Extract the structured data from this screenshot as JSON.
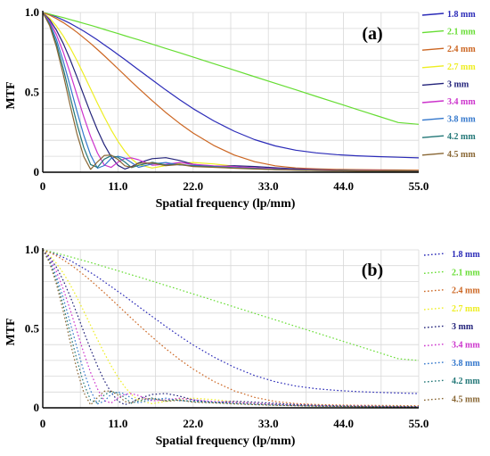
{
  "chart_data": [
    {
      "type": "line",
      "panel_label": "(a)",
      "line_style": "solid",
      "xlabel": "Spatial frequency (lp/mm)",
      "ylabel": "MTF",
      "xlim": [
        0,
        55
      ],
      "ylim": [
        0,
        1
      ],
      "x_ticks": [
        "0",
        "11.0",
        "22.0",
        "33.0",
        "44.0",
        "55.0"
      ],
      "y_ticks": [
        "0",
        "0.5",
        "1.0"
      ],
      "grid": true,
      "legend_position": "right",
      "x": [
        0,
        1,
        2,
        3,
        4,
        5,
        6,
        7,
        8,
        9,
        10,
        11,
        12,
        13,
        14,
        16,
        18,
        20,
        22,
        25,
        28,
        31,
        34,
        37,
        40,
        43,
        46,
        49,
        52,
        55
      ],
      "series": [
        {
          "name": "1.8 mm",
          "color": "#2b2bb8",
          "values": [
            1.0,
            0.988,
            0.972,
            0.953,
            0.932,
            0.908,
            0.883,
            0.856,
            0.828,
            0.798,
            0.768,
            0.737,
            0.706,
            0.674,
            0.642,
            0.578,
            0.515,
            0.455,
            0.398,
            0.322,
            0.257,
            0.204,
            0.165,
            0.138,
            0.121,
            0.11,
            0.103,
            0.098,
            0.094,
            0.09
          ]
        },
        {
          "name": "2.1 mm",
          "color": "#66dd33",
          "values": [
            1.0,
            0.99,
            0.979,
            0.968,
            0.956,
            0.944,
            0.932,
            0.92,
            0.907,
            0.894,
            0.881,
            0.868,
            0.855,
            0.842,
            0.829,
            0.802,
            0.775,
            0.748,
            0.721,
            0.68,
            0.639,
            0.598,
            0.557,
            0.516,
            0.475,
            0.434,
            0.393,
            0.352,
            0.311,
            0.3
          ]
        },
        {
          "name": "2.4 mm",
          "color": "#cc6622",
          "values": [
            1.0,
            0.983,
            0.962,
            0.937,
            0.908,
            0.876,
            0.842,
            0.806,
            0.768,
            0.729,
            0.689,
            0.648,
            0.607,
            0.566,
            0.526,
            0.448,
            0.374,
            0.306,
            0.245,
            0.168,
            0.108,
            0.066,
            0.04,
            0.027,
            0.021,
            0.018,
            0.016,
            0.015,
            0.014,
            0.013
          ]
        },
        {
          "name": "2.7 mm",
          "color": "#eeee22",
          "values": [
            1.0,
            0.965,
            0.915,
            0.853,
            0.78,
            0.699,
            0.612,
            0.522,
            0.432,
            0.346,
            0.266,
            0.194,
            0.132,
            0.083,
            0.048,
            0.026,
            0.042,
            0.056,
            0.061,
            0.052,
            0.038,
            0.028,
            0.022,
            0.018,
            0.015,
            0.013,
            0.011,
            0.01,
            0.009,
            0.008
          ]
        },
        {
          "name": "3 mm",
          "color": "#22227a",
          "values": [
            1.0,
            0.955,
            0.89,
            0.806,
            0.706,
            0.596,
            0.482,
            0.37,
            0.265,
            0.172,
            0.097,
            0.043,
            0.02,
            0.035,
            0.058,
            0.085,
            0.091,
            0.074,
            0.05,
            0.034,
            0.041,
            0.036,
            0.028,
            0.021,
            0.016,
            0.013,
            0.011,
            0.01,
            0.009,
            0.008
          ]
        },
        {
          "name": "3.4 mm",
          "color": "#cc33cc",
          "values": [
            1.0,
            0.945,
            0.862,
            0.752,
            0.622,
            0.484,
            0.348,
            0.224,
            0.12,
            0.045,
            0.03,
            0.063,
            0.086,
            0.09,
            0.078,
            0.044,
            0.05,
            0.061,
            0.05,
            0.04,
            0.035,
            0.028,
            0.022,
            0.017,
            0.014,
            0.012,
            0.01,
            0.009,
            0.008,
            0.007
          ]
        },
        {
          "name": "3.8 mm",
          "color": "#3377cc",
          "values": [
            1.0,
            0.935,
            0.832,
            0.696,
            0.54,
            0.381,
            0.232,
            0.108,
            0.025,
            0.042,
            0.086,
            0.1,
            0.088,
            0.06,
            0.031,
            0.052,
            0.061,
            0.045,
            0.043,
            0.036,
            0.029,
            0.024,
            0.019,
            0.015,
            0.012,
            0.01,
            0.009,
            0.008,
            0.007,
            0.006
          ]
        },
        {
          "name": "4.2 mm",
          "color": "#227777",
          "values": [
            1.0,
            0.925,
            0.806,
            0.649,
            0.474,
            0.302,
            0.155,
            0.048,
            0.03,
            0.082,
            0.103,
            0.094,
            0.064,
            0.029,
            0.043,
            0.062,
            0.046,
            0.05,
            0.039,
            0.033,
            0.027,
            0.022,
            0.017,
            0.014,
            0.011,
            0.01,
            0.008,
            0.007,
            0.006,
            0.006
          ]
        },
        {
          "name": "4.5 mm",
          "color": "#886633",
          "values": [
            1.0,
            0.918,
            0.785,
            0.612,
            0.42,
            0.24,
            0.098,
            0.018,
            0.065,
            0.105,
            0.107,
            0.08,
            0.04,
            0.03,
            0.056,
            0.058,
            0.041,
            0.048,
            0.036,
            0.031,
            0.025,
            0.02,
            0.016,
            0.013,
            0.011,
            0.009,
            0.008,
            0.007,
            0.006,
            0.005
          ]
        }
      ]
    },
    {
      "type": "line",
      "panel_label": "(b)",
      "line_style": "dotted",
      "xlabel": "Spatial frequency (lp/mm)",
      "ylabel": "MTF",
      "xlim": [
        0,
        55
      ],
      "ylim": [
        0,
        1
      ],
      "x_ticks": [
        "0",
        "11.0",
        "22.0",
        "33.0",
        "44.0",
        "55.0"
      ],
      "y_ticks": [
        "0",
        "0.5",
        "1.0"
      ],
      "grid": true,
      "legend_position": "right",
      "x": [
        0,
        1,
        2,
        3,
        4,
        5,
        6,
        7,
        8,
        9,
        10,
        11,
        12,
        13,
        14,
        16,
        18,
        20,
        22,
        25,
        28,
        31,
        34,
        37,
        40,
        43,
        46,
        49,
        52,
        55
      ],
      "series": [
        {
          "name": "1.8 mm",
          "color": "#2b2bb8",
          "values": [
            1.0,
            0.988,
            0.972,
            0.953,
            0.932,
            0.908,
            0.883,
            0.856,
            0.828,
            0.798,
            0.768,
            0.737,
            0.706,
            0.674,
            0.642,
            0.578,
            0.515,
            0.455,
            0.398,
            0.322,
            0.257,
            0.204,
            0.165,
            0.138,
            0.121,
            0.11,
            0.103,
            0.098,
            0.094,
            0.09
          ]
        },
        {
          "name": "2.1 mm",
          "color": "#66dd33",
          "values": [
            1.0,
            0.99,
            0.979,
            0.968,
            0.956,
            0.944,
            0.932,
            0.92,
            0.907,
            0.894,
            0.881,
            0.868,
            0.855,
            0.842,
            0.829,
            0.802,
            0.775,
            0.748,
            0.721,
            0.68,
            0.639,
            0.598,
            0.557,
            0.516,
            0.475,
            0.434,
            0.393,
            0.352,
            0.311,
            0.3
          ]
        },
        {
          "name": "2.4 mm",
          "color": "#cc6622",
          "values": [
            1.0,
            0.983,
            0.962,
            0.937,
            0.908,
            0.876,
            0.842,
            0.806,
            0.768,
            0.729,
            0.689,
            0.648,
            0.607,
            0.566,
            0.526,
            0.448,
            0.374,
            0.306,
            0.245,
            0.168,
            0.108,
            0.066,
            0.04,
            0.027,
            0.021,
            0.018,
            0.016,
            0.015,
            0.014,
            0.013
          ]
        },
        {
          "name": "2.7 mm",
          "color": "#eeee22",
          "values": [
            1.0,
            0.965,
            0.915,
            0.853,
            0.78,
            0.699,
            0.612,
            0.522,
            0.432,
            0.346,
            0.266,
            0.194,
            0.132,
            0.083,
            0.048,
            0.026,
            0.042,
            0.056,
            0.061,
            0.052,
            0.038,
            0.028,
            0.022,
            0.018,
            0.015,
            0.013,
            0.011,
            0.01,
            0.009,
            0.008
          ]
        },
        {
          "name": "3 mm",
          "color": "#22227a",
          "values": [
            1.0,
            0.955,
            0.89,
            0.806,
            0.706,
            0.596,
            0.482,
            0.37,
            0.265,
            0.172,
            0.097,
            0.043,
            0.02,
            0.035,
            0.058,
            0.085,
            0.091,
            0.074,
            0.05,
            0.034,
            0.041,
            0.036,
            0.028,
            0.021,
            0.016,
            0.013,
            0.011,
            0.01,
            0.009,
            0.008
          ]
        },
        {
          "name": "3.4 mm",
          "color": "#cc33cc",
          "values": [
            1.0,
            0.945,
            0.862,
            0.752,
            0.622,
            0.484,
            0.348,
            0.224,
            0.12,
            0.045,
            0.03,
            0.063,
            0.086,
            0.09,
            0.078,
            0.044,
            0.05,
            0.061,
            0.05,
            0.04,
            0.035,
            0.028,
            0.022,
            0.017,
            0.014,
            0.012,
            0.01,
            0.009,
            0.008,
            0.007
          ]
        },
        {
          "name": "3.8 mm",
          "color": "#3377cc",
          "values": [
            1.0,
            0.935,
            0.832,
            0.696,
            0.54,
            0.381,
            0.232,
            0.108,
            0.025,
            0.042,
            0.086,
            0.1,
            0.088,
            0.06,
            0.031,
            0.052,
            0.061,
            0.045,
            0.043,
            0.036,
            0.029,
            0.024,
            0.019,
            0.015,
            0.012,
            0.01,
            0.009,
            0.008,
            0.007,
            0.006
          ]
        },
        {
          "name": "4.2 mm",
          "color": "#227777",
          "values": [
            1.0,
            0.925,
            0.806,
            0.649,
            0.474,
            0.302,
            0.155,
            0.048,
            0.03,
            0.082,
            0.103,
            0.094,
            0.064,
            0.029,
            0.043,
            0.062,
            0.046,
            0.05,
            0.039,
            0.033,
            0.027,
            0.022,
            0.017,
            0.014,
            0.011,
            0.01,
            0.008,
            0.007,
            0.006,
            0.006
          ]
        },
        {
          "name": "4.5 mm",
          "color": "#886633",
          "values": [
            1.0,
            0.918,
            0.785,
            0.612,
            0.42,
            0.24,
            0.098,
            0.018,
            0.065,
            0.105,
            0.107,
            0.08,
            0.04,
            0.03,
            0.056,
            0.058,
            0.041,
            0.048,
            0.036,
            0.031,
            0.025,
            0.02,
            0.016,
            0.013,
            0.011,
            0.009,
            0.008,
            0.007,
            0.006,
            0.005
          ]
        }
      ]
    }
  ]
}
